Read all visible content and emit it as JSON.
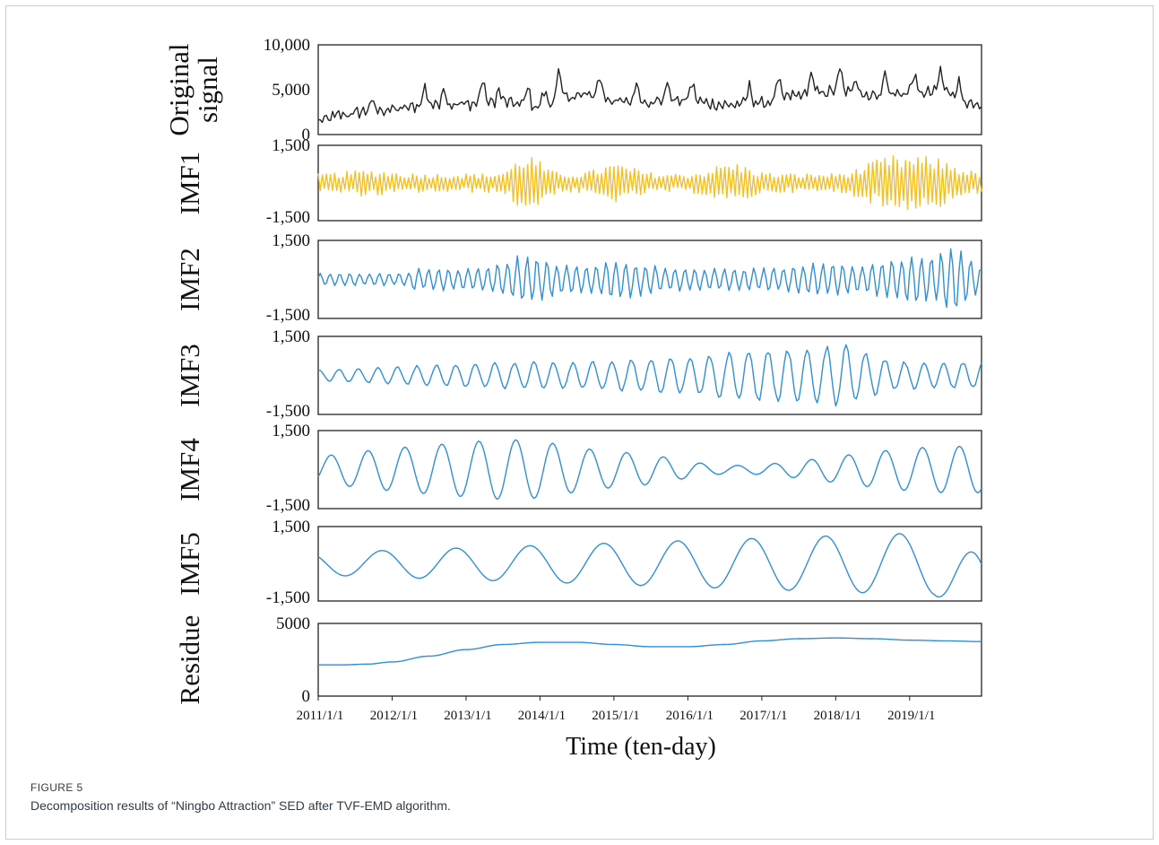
{
  "figure": {
    "label": "FIGURE 5",
    "caption": "Decomposition results of “Ningbo Attraction” SED after TVF-EMD algorithm."
  },
  "chart_data": {
    "type": "line",
    "x_axis": {
      "label": "Time  (ten-day)",
      "start": "2011/1/1",
      "end": "2019/12/21",
      "points_per_year": 36,
      "n_points": 324,
      "tick_labels": [
        "2011/1/1",
        "2012/1/1",
        "2013/1/1",
        "2014/1/1",
        "2015/1/1",
        "2016/1/1",
        "2017/1/1",
        "2018/1/1",
        "2019/1/1"
      ]
    },
    "panels": [
      {
        "name": "original",
        "ylabel_lines": [
          "Original",
          "signal"
        ],
        "ylim": [
          0,
          10000
        ],
        "ytick_labels": [
          "10,000",
          "5,000",
          "0"
        ],
        "color": "#222222",
        "note": "Peaks near 7,000 around 2013/10 and 2017/9, low of ~1,000 at 2011/1",
        "anchors": [
          [
            0,
            1500
          ],
          [
            12,
            2200
          ],
          [
            24,
            2600
          ],
          [
            36,
            2800
          ],
          [
            54,
            3300
          ],
          [
            72,
            3400
          ],
          [
            90,
            3600
          ],
          [
            108,
            3000
          ],
          [
            120,
            4200
          ],
          [
            132,
            4400
          ],
          [
            150,
            3600
          ],
          [
            162,
            3700
          ],
          [
            180,
            3800
          ],
          [
            198,
            3300
          ],
          [
            216,
            3500
          ],
          [
            234,
            4400
          ],
          [
            252,
            4800
          ],
          [
            270,
            4400
          ],
          [
            288,
            4600
          ],
          [
            306,
            4700
          ],
          [
            323,
            2900
          ]
        ],
        "peaks": [
          [
            26,
            1100
          ],
          [
            52,
            2000
          ],
          [
            61,
            1900
          ],
          [
            80,
            2600
          ],
          [
            88,
            1300
          ],
          [
            102,
            2200
          ],
          [
            110,
            1800
          ],
          [
            117,
            2800
          ],
          [
            137,
            2200
          ],
          [
            155,
            2100
          ],
          [
            170,
            2000
          ],
          [
            182,
            2000
          ],
          [
            210,
            1900
          ],
          [
            224,
            2200
          ],
          [
            240,
            2300
          ],
          [
            254,
            2500
          ],
          [
            262,
            1800
          ],
          [
            276,
            2300
          ],
          [
            290,
            2100
          ],
          [
            303,
            2400
          ],
          [
            312,
            1600
          ]
        ]
      },
      {
        "name": "imf1",
        "ylabel_lines": [
          "IMF1"
        ],
        "ylim": [
          -1500,
          1500
        ],
        "ytick_labels": [
          "1,500",
          "-1,500"
        ],
        "color": "#f5bf26",
        "note": "High-frequency component alternating sign each sample; largest swings ~1,300 around 2014 and 2018"
      },
      {
        "name": "imf2",
        "ylabel_lines": [
          "IMF2"
        ],
        "ylim": [
          -1500,
          1500
        ],
        "ytick_labels": [
          "1,500",
          "-1,500"
        ],
        "color": "#2f8fd8",
        "note": "Oscillation period ~5 samples; peak ~1,400 near 2019/3"
      },
      {
        "name": "imf3",
        "ylabel_lines": [
          "IMF3"
        ],
        "ylim": [
          -1500,
          1500
        ],
        "ytick_labels": [
          "1,500",
          "-1,500"
        ],
        "color": "#2f8fd8",
        "note": "Oscillation period ~10 samples"
      },
      {
        "name": "imf4",
        "ylabel_lines": [
          "IMF4"
        ],
        "ylim": [
          -1500,
          1500
        ],
        "ytick_labels": [
          "1,500",
          "-1,500"
        ],
        "color": "#2f8fd8",
        "note": "Oscillation period ~18 samples (semi-annual)"
      },
      {
        "name": "imf5",
        "ylabel_lines": [
          "IMF5"
        ],
        "ylim": [
          -1500,
          1500
        ],
        "ytick_labels": [
          "1,500",
          "-1,500"
        ],
        "color": "#2f8fd8",
        "note": "Annual cycle (36 samples), amplitude growing to ~1,300; ends at -1,500"
      },
      {
        "name": "residue",
        "ylabel_lines": [
          "Residue"
        ],
        "ylim": [
          0,
          5000
        ],
        "ytick_labels": [
          "5000",
          "0"
        ],
        "color": "#2f8fd8",
        "anchors": [
          [
            0,
            2150
          ],
          [
            12,
            2150
          ],
          [
            24,
            2200
          ],
          [
            36,
            2350
          ],
          [
            54,
            2750
          ],
          [
            72,
            3200
          ],
          [
            90,
            3550
          ],
          [
            108,
            3700
          ],
          [
            126,
            3700
          ],
          [
            144,
            3550
          ],
          [
            162,
            3400
          ],
          [
            180,
            3400
          ],
          [
            198,
            3550
          ],
          [
            216,
            3800
          ],
          [
            234,
            3950
          ],
          [
            252,
            4000
          ],
          [
            270,
            3950
          ],
          [
            288,
            3850
          ],
          [
            306,
            3800
          ],
          [
            323,
            3750
          ]
        ]
      }
    ]
  }
}
